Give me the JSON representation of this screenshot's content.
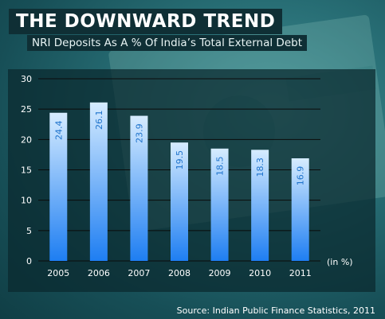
{
  "header": {
    "title": "THE DOWNWARD TREND",
    "subtitle": "NRI Deposits As A % Of India’s Total External Debt"
  },
  "footer": {
    "source": "Source: Indian Public Finance Statistics, 2011"
  },
  "colors": {
    "bar_top": "#d6ecff",
    "bar_bottom": "#1e7ef2",
    "label_text": "#1e73cc",
    "axis_text": "#ffffff",
    "grid": "#0b0b0b"
  },
  "chart_data": {
    "type": "bar",
    "categories": [
      "2005",
      "2006",
      "2007",
      "2008",
      "2009",
      "2010",
      "2011"
    ],
    "values": [
      24.4,
      26.1,
      23.9,
      19.5,
      18.5,
      18.3,
      16.9
    ],
    "value_labels": [
      "24.4",
      "26.1",
      "23.9",
      "19.5",
      "18.5",
      "18.3",
      "16.9"
    ],
    "title": "NRI Deposits As A % Of India’s Total External Debt",
    "unit_label": "(in %)",
    "xlabel": "",
    "ylabel": "",
    "ylim": [
      0,
      30
    ],
    "yticks": [
      "0",
      "5",
      "10",
      "15",
      "20",
      "25",
      "30"
    ],
    "grid": true,
    "legend": "none"
  }
}
